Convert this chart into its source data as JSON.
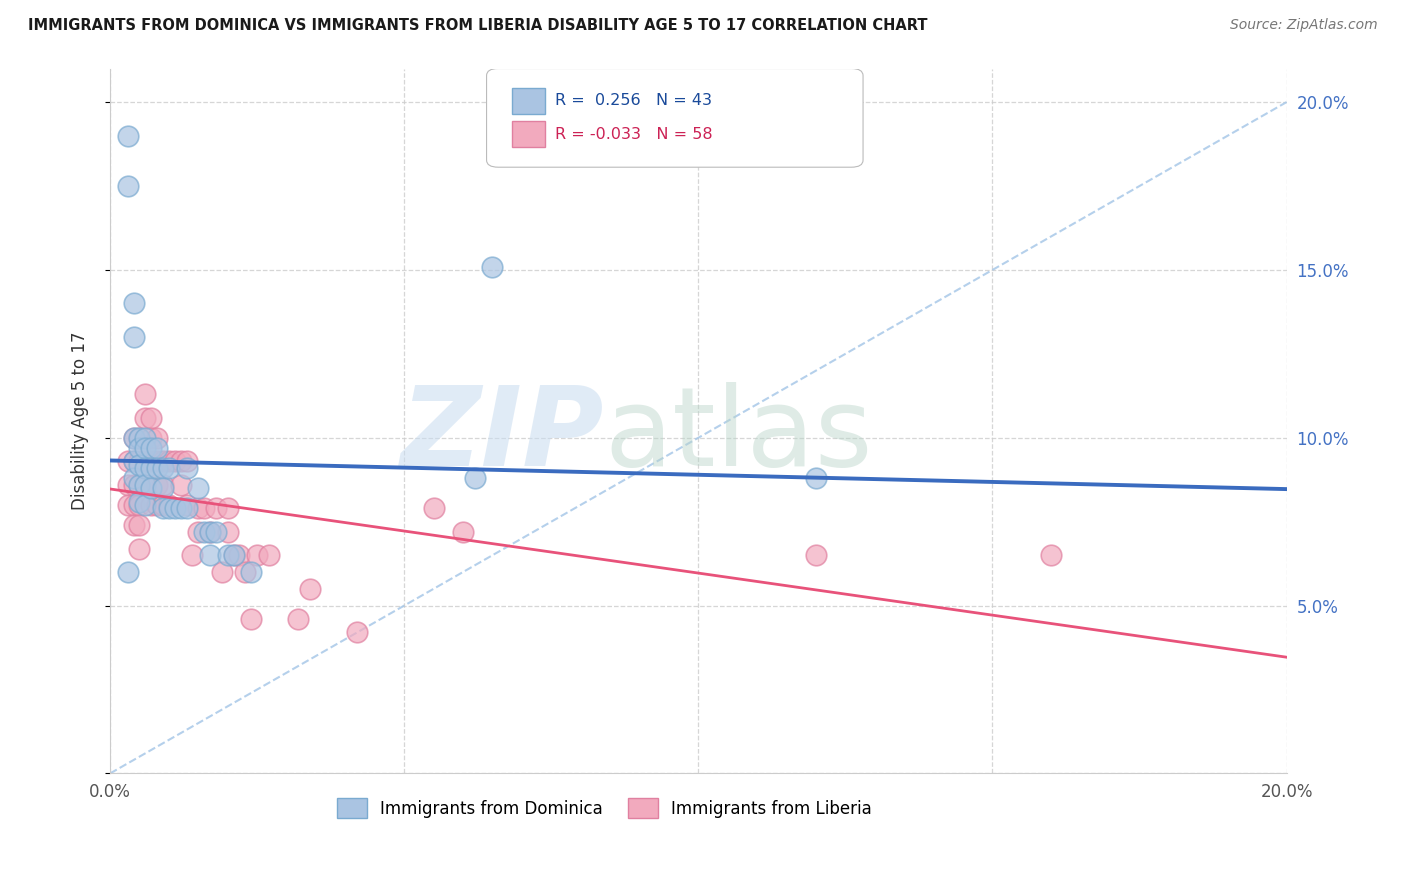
{
  "title": "IMMIGRANTS FROM DOMINICA VS IMMIGRANTS FROM LIBERIA DISABILITY AGE 5 TO 17 CORRELATION CHART",
  "source": "Source: ZipAtlas.com",
  "ylabel": "Disability Age 5 to 17",
  "xlim": [
    0.0,
    0.2
  ],
  "ylim": [
    0.0,
    0.21
  ],
  "dominica_R": "0.256",
  "dominica_N": "43",
  "liberia_R": "-0.033",
  "liberia_N": "58",
  "dominica_color": "#aac4e2",
  "liberia_color": "#f2aabe",
  "dominica_line_color": "#3a6bbf",
  "liberia_line_color": "#e8527a",
  "dashed_line_color": "#aac4e2",
  "legend_dominica": "Immigrants from Dominica",
  "legend_liberia": "Immigrants from Liberia",
  "background_color": "#ffffff",
  "grid_color": "#cccccc",
  "dominica_x": [
    0.003,
    0.003,
    0.004,
    0.004,
    0.004,
    0.004,
    0.004,
    0.005,
    0.005,
    0.005,
    0.005,
    0.005,
    0.006,
    0.006,
    0.006,
    0.006,
    0.006,
    0.007,
    0.007,
    0.007,
    0.008,
    0.008,
    0.009,
    0.009,
    0.009,
    0.01,
    0.01,
    0.011,
    0.012,
    0.013,
    0.013,
    0.015,
    0.016,
    0.017,
    0.017,
    0.018,
    0.02,
    0.021,
    0.024,
    0.062,
    0.065,
    0.12,
    0.003
  ],
  "dominica_y": [
    0.19,
    0.175,
    0.14,
    0.13,
    0.1,
    0.093,
    0.088,
    0.1,
    0.097,
    0.092,
    0.086,
    0.081,
    0.1,
    0.097,
    0.091,
    0.086,
    0.08,
    0.097,
    0.091,
    0.085,
    0.097,
    0.091,
    0.091,
    0.085,
    0.079,
    0.091,
    0.079,
    0.079,
    0.079,
    0.091,
    0.079,
    0.085,
    0.072,
    0.072,
    0.065,
    0.072,
    0.065,
    0.065,
    0.06,
    0.088,
    0.151,
    0.088,
    0.06
  ],
  "liberia_x": [
    0.003,
    0.003,
    0.003,
    0.004,
    0.004,
    0.004,
    0.004,
    0.004,
    0.005,
    0.005,
    0.005,
    0.005,
    0.005,
    0.005,
    0.006,
    0.006,
    0.006,
    0.006,
    0.007,
    0.007,
    0.007,
    0.007,
    0.008,
    0.008,
    0.008,
    0.008,
    0.009,
    0.009,
    0.009,
    0.01,
    0.01,
    0.011,
    0.012,
    0.012,
    0.013,
    0.013,
    0.014,
    0.015,
    0.015,
    0.016,
    0.017,
    0.018,
    0.019,
    0.02,
    0.02,
    0.021,
    0.022,
    0.023,
    0.024,
    0.025,
    0.027,
    0.032,
    0.034,
    0.042,
    0.055,
    0.06,
    0.12,
    0.16
  ],
  "liberia_y": [
    0.093,
    0.086,
    0.08,
    0.1,
    0.093,
    0.086,
    0.08,
    0.074,
    0.1,
    0.093,
    0.086,
    0.08,
    0.074,
    0.067,
    0.113,
    0.106,
    0.093,
    0.086,
    0.106,
    0.1,
    0.093,
    0.08,
    0.1,
    0.093,
    0.086,
    0.08,
    0.093,
    0.086,
    0.08,
    0.093,
    0.08,
    0.093,
    0.093,
    0.086,
    0.093,
    0.08,
    0.065,
    0.079,
    0.072,
    0.079,
    0.072,
    0.079,
    0.06,
    0.079,
    0.072,
    0.065,
    0.065,
    0.06,
    0.046,
    0.065,
    0.065,
    0.046,
    0.055,
    0.042,
    0.079,
    0.072,
    0.065,
    0.065
  ]
}
